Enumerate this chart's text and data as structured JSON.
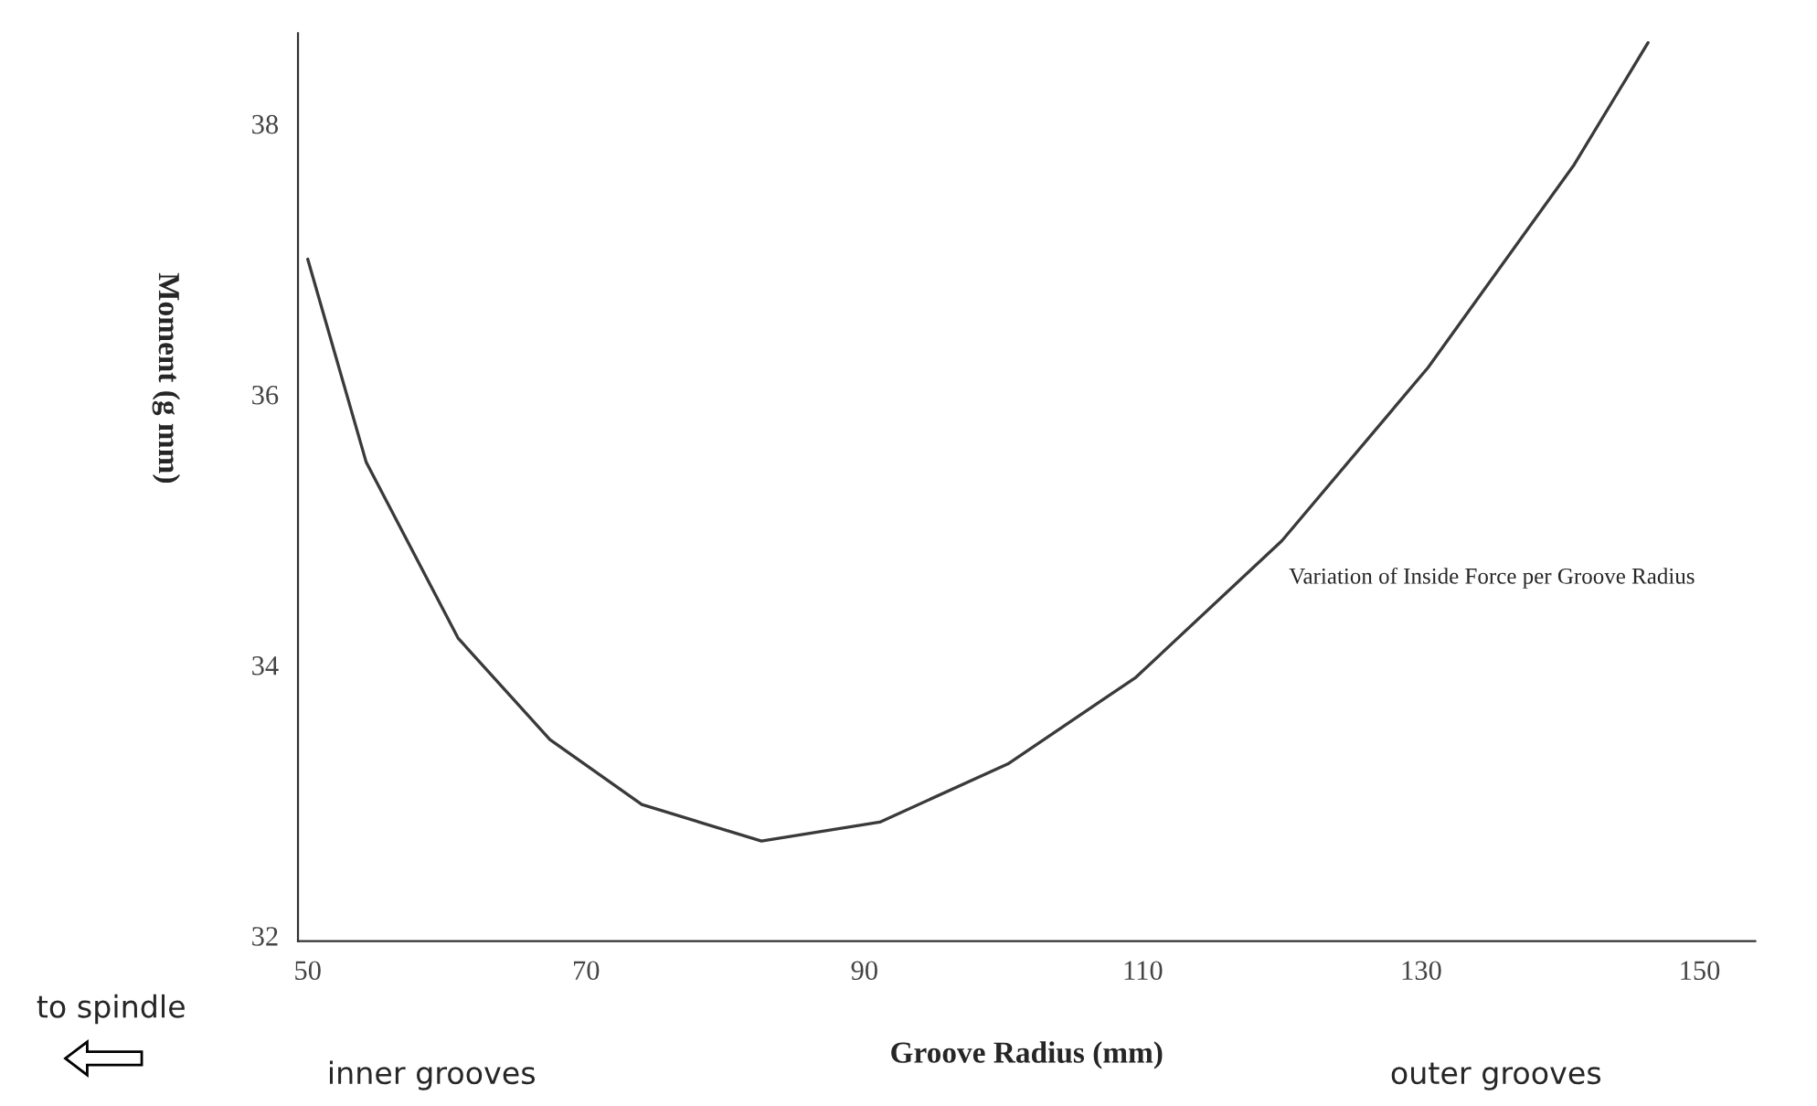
{
  "chart_data": {
    "type": "line",
    "xlabel": "Groove Radius (mm)",
    "ylabel": "Moment (g mm)",
    "xlim": [
      49.3,
      154
    ],
    "xticks": [
      50,
      70,
      90,
      110,
      130,
      150
    ],
    "ylim": [
      31.96,
      38.67
    ],
    "yticks": [
      32,
      34,
      36,
      38
    ],
    "series": [
      {
        "name": "Variation of Inside Force per Groove Radius",
        "color": "#3a3a3a",
        "x": [
          50,
          54.2,
          60.8,
          67.4,
          74,
          82.6,
          91.1,
          100.3,
          109.5,
          120,
          130.5,
          141,
          146.3
        ],
        "values": [
          37.0,
          35.5,
          34.2,
          33.45,
          32.97,
          32.7,
          32.84,
          33.27,
          33.91,
          34.92,
          36.2,
          37.7,
          38.6
        ]
      }
    ],
    "annotations": [
      "to spindle",
      "inner grooves",
      "outer grooves"
    ],
    "grid": false,
    "legend": false,
    "marker": "none",
    "line_style": "solid"
  }
}
